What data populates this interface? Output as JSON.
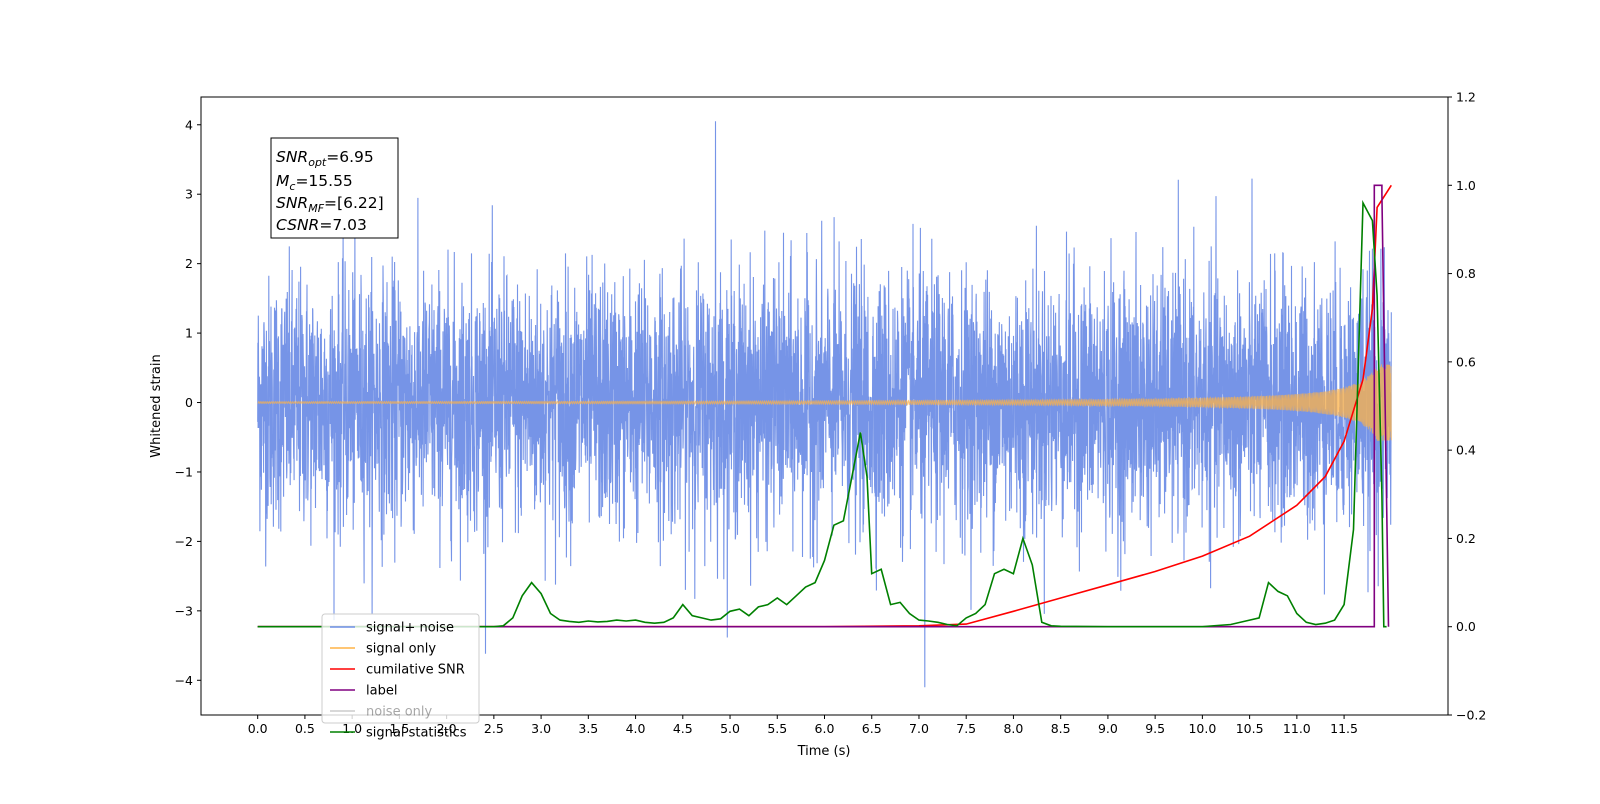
{
  "chart_data": {
    "type": "line",
    "xlabel": "Time (s)",
    "ylabel": "Whitened strain",
    "x_ticks": [
      "0.0",
      "0.5",
      "1.0",
      "1.5",
      "2.0",
      "2.5",
      "3.0",
      "3.5",
      "4.0",
      "4.5",
      "5.0",
      "5.5",
      "6.0",
      "6.5",
      "7.0",
      "7.5",
      "8.0",
      "8.5",
      "9.0",
      "9.5",
      "10.0",
      "10.5",
      "11.0",
      "11.5"
    ],
    "xlim": [
      -0.6,
      12.6
    ],
    "ylim_left": [
      -4.5,
      4.4
    ],
    "y_ticks_left": [
      -4,
      -3,
      -2,
      -1,
      0,
      1,
      2,
      3,
      4
    ],
    "ylim_right": [
      -0.2,
      1.2
    ],
    "y_ticks_right": [
      "−0.2",
      "0.0",
      "0.2",
      "0.4",
      "0.6",
      "0.8",
      "1.0",
      "1.2"
    ],
    "grid": false,
    "legend_position": "lower-left",
    "annotations": {
      "snr_opt": {
        "symbol": "SNR",
        "sub": "opt",
        "text": "=6.95"
      },
      "mc": {
        "symbol": "M",
        "sub": "c",
        "text": "=15.55"
      },
      "snr_mf": {
        "symbol": "SNR",
        "sub": "MF",
        "text": "=[6.22]"
      },
      "csnr": {
        "symbol": "CSNR",
        "sub": "",
        "text": "=7.03"
      }
    },
    "series": [
      {
        "name": "signal+ noise",
        "axis": "left",
        "color": "#6f8ee6",
        "style": "noise",
        "x_range": [
          0.0,
          12.0
        ],
        "amplitude_std": 0.9,
        "peak_max": 4.05,
        "peak_min": -4.1
      },
      {
        "name": "signal only",
        "axis": "left",
        "color": "#ffb347",
        "style": "chirp",
        "x_range": [
          0.0,
          12.0
        ],
        "final_amplitude": 0.45
      },
      {
        "name": "cumilative SNR",
        "axis": "right",
        "color": "#ff0000",
        "x": [
          0,
          6.0,
          7.0,
          7.5,
          8.0,
          8.5,
          9.0,
          9.5,
          10.0,
          10.5,
          11.0,
          11.3,
          11.5,
          11.7,
          11.8,
          11.85,
          12.0
        ],
        "y": [
          0,
          0.0,
          0.002,
          0.006,
          0.035,
          0.065,
          0.095,
          0.125,
          0.16,
          0.205,
          0.275,
          0.34,
          0.42,
          0.56,
          0.72,
          0.95,
          1.0
        ]
      },
      {
        "name": "label",
        "axis": "right",
        "color": "#800080",
        "x": [
          0,
          11.75,
          11.82,
          11.82,
          11.9,
          11.9,
          11.97
        ],
        "y": [
          0,
          0,
          0,
          1.0,
          1.0,
          0.98,
          0.0
        ]
      },
      {
        "name": "noise only",
        "axis": "right",
        "color": "#a6a6a6",
        "hidden": true,
        "x": [],
        "y": []
      },
      {
        "name": "signal statistics",
        "axis": "right",
        "color": "#008000",
        "x": [
          0,
          2.5,
          2.6,
          2.7,
          2.8,
          2.9,
          3.0,
          3.1,
          3.2,
          3.3,
          3.4,
          3.5,
          3.6,
          3.7,
          3.8,
          3.9,
          4.0,
          4.1,
          4.2,
          4.3,
          4.4,
          4.5,
          4.6,
          4.7,
          4.8,
          4.9,
          5.0,
          5.1,
          5.2,
          5.3,
          5.4,
          5.5,
          5.6,
          5.7,
          5.8,
          5.9,
          6.0,
          6.1,
          6.2,
          6.3,
          6.38,
          6.45,
          6.5,
          6.6,
          6.7,
          6.8,
          6.9,
          7.0,
          7.1,
          7.2,
          7.3,
          7.4,
          7.5,
          7.6,
          7.7,
          7.8,
          7.9,
          8.0,
          8.1,
          8.2,
          8.3,
          8.4,
          8.5,
          9.0,
          9.5,
          10.0,
          10.3,
          10.5,
          10.6,
          10.7,
          10.8,
          10.9,
          11.0,
          11.1,
          11.2,
          11.3,
          11.4,
          11.5,
          11.6,
          11.7,
          11.8,
          11.85,
          11.9,
          11.92,
          11.95
        ],
        "y": [
          0,
          0,
          0.002,
          0.02,
          0.07,
          0.1,
          0.075,
          0.03,
          0.015,
          0.012,
          0.01,
          0.013,
          0.011,
          0.012,
          0.015,
          0.013,
          0.015,
          0.01,
          0.008,
          0.01,
          0.02,
          0.05,
          0.025,
          0.02,
          0.015,
          0.018,
          0.035,
          0.04,
          0.025,
          0.045,
          0.05,
          0.065,
          0.05,
          0.07,
          0.09,
          0.1,
          0.15,
          0.23,
          0.24,
          0.35,
          0.44,
          0.34,
          0.12,
          0.13,
          0.05,
          0.055,
          0.03,
          0.015,
          0.013,
          0.01,
          0.005,
          0.002,
          0.02,
          0.03,
          0.05,
          0.12,
          0.13,
          0.12,
          0.2,
          0.14,
          0.01,
          0.002,
          0.001,
          0.0,
          0.0,
          0.0,
          0.005,
          0.015,
          0.02,
          0.1,
          0.08,
          0.07,
          0.03,
          0.01,
          0.005,
          0.008,
          0.015,
          0.05,
          0.22,
          0.96,
          0.92,
          0.75,
          0.3,
          0.0,
          0.0
        ]
      }
    ]
  }
}
